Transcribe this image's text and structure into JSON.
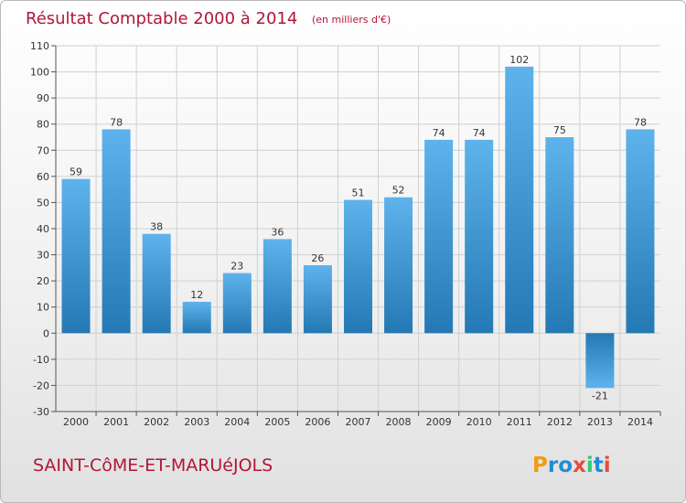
{
  "header": {
    "title": "Résultat Comptable 2000 à 2014",
    "unit_note": "(en milliers d'€)"
  },
  "footer": {
    "city": "SAINT-CôME-ET-MARUéJOLS",
    "brand_letters": [
      "P",
      "r",
      "o",
      "x",
      "i",
      "t",
      "i"
    ],
    "brand_colors": [
      "#f39c12",
      "#1f8dd6",
      "#1f8dd6",
      "#e74c3c",
      "#2ecc71",
      "#1f8dd6",
      "#e74c3c"
    ]
  },
  "colors": {
    "bar_light": "#5eb3ec",
    "bar_dark": "#2479b4",
    "grid": "#d0d0d0",
    "axis": "#555555"
  },
  "chart_data": {
    "type": "bar",
    "title": "Résultat Comptable 2000 à 2014",
    "xlabel": "",
    "ylabel": "",
    "ylim": [
      -30,
      110
    ],
    "ytick_step": 10,
    "grid": true,
    "categories": [
      "2000",
      "2001",
      "2002",
      "2003",
      "2004",
      "2005",
      "2006",
      "2007",
      "2008",
      "2009",
      "2010",
      "2011",
      "2012",
      "2013",
      "2014"
    ],
    "values": [
      59,
      78,
      38,
      12,
      23,
      36,
      26,
      51,
      52,
      74,
      74,
      102,
      75,
      -21,
      78
    ]
  }
}
